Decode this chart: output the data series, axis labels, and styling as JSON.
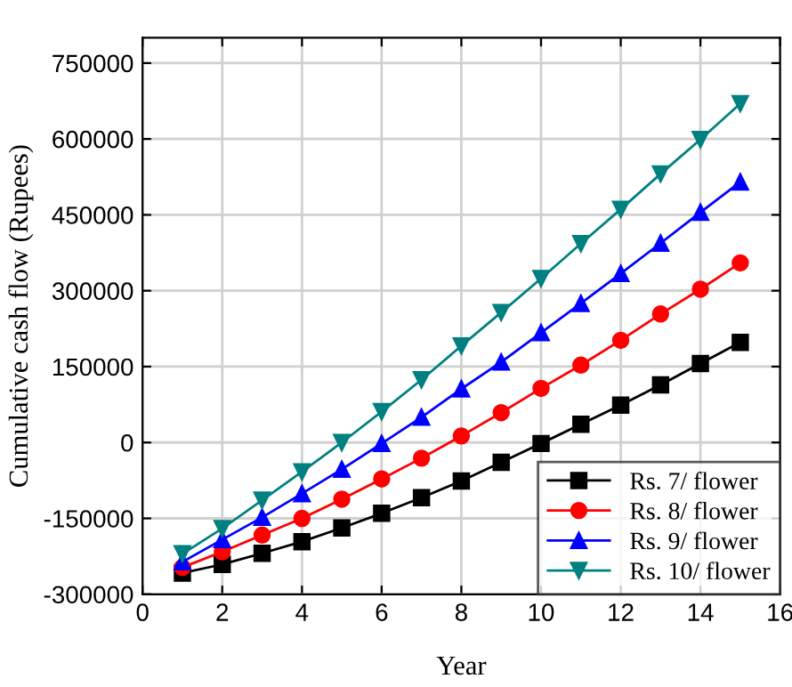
{
  "chart_data": {
    "type": "line",
    "xlabel": "Year",
    "ylabel": "Cumulative cash flow (Rupees)",
    "x": [
      1,
      2,
      3,
      4,
      5,
      6,
      7,
      8,
      9,
      10,
      11,
      12,
      13,
      14,
      15
    ],
    "series": [
      {
        "name": "Rs. 7/ flower",
        "color": "#000000",
        "marker": "square",
        "values": [
          -258000,
          -241000,
          -219000,
          -196000,
          -169000,
          -140000,
          -109000,
          -76000,
          -39000,
          -2000,
          36000,
          74000,
          114000,
          156000,
          198000
        ]
      },
      {
        "name": "Rs. 8/ flower",
        "color": "#ff0000",
        "marker": "circle",
        "values": [
          -247000,
          -216000,
          -183000,
          -150000,
          -112000,
          -72000,
          -31000,
          13000,
          59000,
          107000,
          153000,
          202000,
          254000,
          303000,
          355000
        ]
      },
      {
        "name": "Rs. 9/ flower",
        "color": "#0000ff",
        "marker": "triangle",
        "values": [
          -236000,
          -192000,
          -148000,
          -101000,
          -53000,
          -2000,
          50000,
          106000,
          159000,
          217000,
          275000,
          334000,
          394000,
          455000,
          515000
        ]
      },
      {
        "name": "Rs. 10/ flower",
        "color": "#008080",
        "marker": "triangle_down",
        "values": [
          -220000,
          -170000,
          -114000,
          -58000,
          0,
          61000,
          124000,
          191000,
          257000,
          324000,
          393000,
          461000,
          531000,
          599000,
          670000
        ]
      }
    ],
    "xlim": [
      0,
      16
    ],
    "xticks": [
      0,
      2,
      4,
      6,
      8,
      10,
      12,
      14,
      16
    ],
    "ylim": [
      -300000,
      800000
    ],
    "yticks": [
      -300000,
      -150000,
      0,
      150000,
      300000,
      450000,
      600000,
      750000
    ],
    "grid": true,
    "legend": "bottom right",
    "line_style": "solid"
  }
}
